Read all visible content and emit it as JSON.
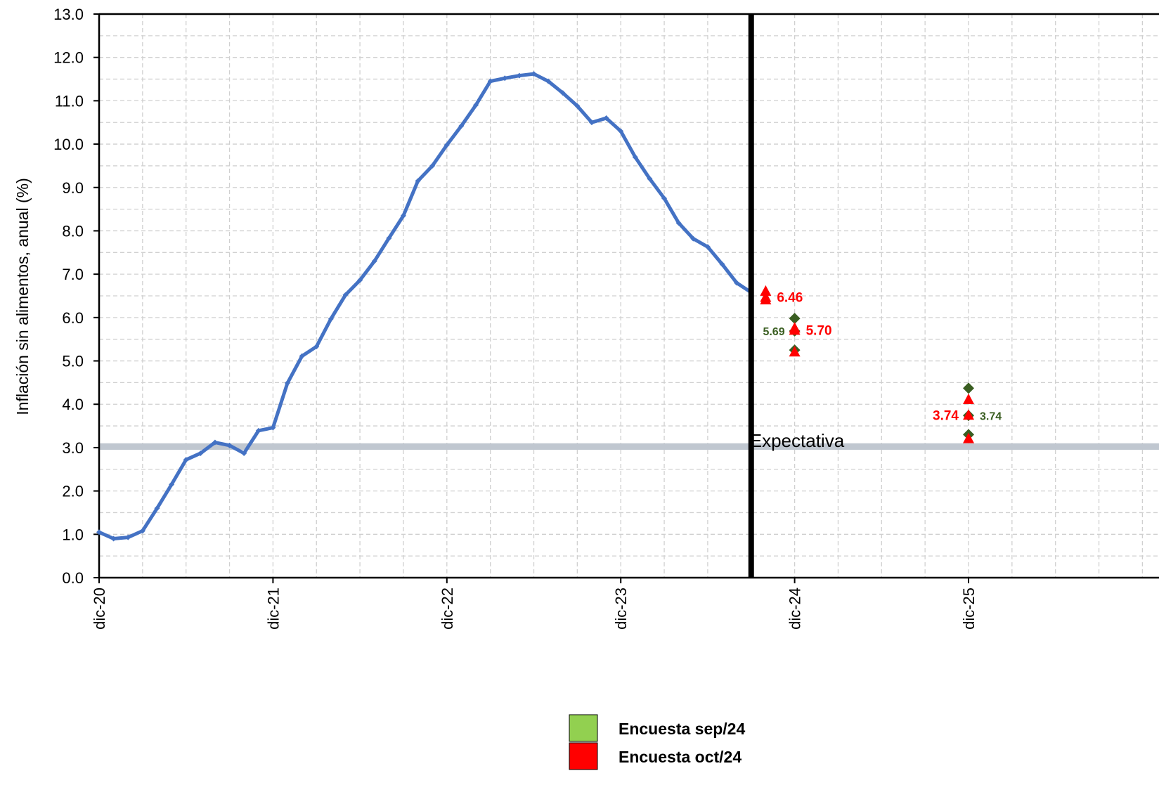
{
  "chart_data": {
    "type": "line",
    "title": "",
    "ylabel": "Inflación  sin alimentos,  anual  (%)",
    "xlabel": "",
    "ylim": [
      0,
      13
    ],
    "yticks": [
      "0.0",
      "1.0",
      "2.0",
      "3.0",
      "4.0",
      "5.0",
      "6.0",
      "7.0",
      "8.0",
      "9.0",
      "10.0",
      "11.0",
      "12.0",
      "13.0"
    ],
    "grid": true,
    "x_months_domain": [
      0,
      72
    ],
    "xticks": [
      {
        "label": "dic-20",
        "m": 0
      },
      {
        "label": "dic-21",
        "m": 12
      },
      {
        "label": "dic-22",
        "m": 24
      },
      {
        "label": "dic-23",
        "m": 36
      },
      {
        "label": "dic-24",
        "m": 48
      },
      {
        "label": "dic-25",
        "m": 60
      }
    ],
    "target_band": {
      "low": 2.95,
      "high": 3.1,
      "color": "#c0c7d0"
    },
    "divider": {
      "m": 45,
      "label": "Expectativa"
    },
    "series": [
      {
        "name": "",
        "color": "#4472c4",
        "x_months": [
          0,
          1,
          2,
          3,
          4,
          5,
          6,
          7,
          8,
          9,
          10,
          11,
          12,
          13,
          14,
          15,
          16,
          17,
          18,
          19,
          20,
          21,
          22,
          23,
          24,
          25,
          26,
          27,
          28,
          29,
          30,
          31,
          32,
          33,
          34,
          35,
          36,
          37,
          38,
          39,
          40,
          41,
          42,
          43,
          44,
          45
        ],
        "values": [
          1.05,
          0.9,
          0.93,
          1.08,
          1.6,
          2.15,
          2.72,
          2.87,
          3.12,
          3.05,
          2.87,
          3.39,
          3.46,
          4.49,
          5.11,
          5.33,
          5.97,
          6.52,
          6.86,
          7.3,
          7.83,
          8.35,
          9.15,
          9.5,
          9.98,
          10.42,
          10.9,
          11.45,
          11.52,
          11.58,
          11.62,
          11.45,
          11.18,
          10.88,
          10.5,
          10.6,
          10.3,
          9.7,
          9.2,
          8.75,
          8.18,
          7.82,
          7.63,
          7.23,
          6.8,
          6.58
        ]
      }
    ],
    "surveys": [
      {
        "name": "Encuesta sep/24",
        "color": "#3a5e21",
        "legend_color": "#92d050",
        "marker": "diamond",
        "points": [
          {
            "m": 48,
            "values": [
              5.98,
              5.69,
              5.25
            ],
            "label": "5.69",
            "label_side": "left"
          },
          {
            "m": 60,
            "values": [
              4.37,
              3.74,
              3.3
            ],
            "label": "3.74",
            "label_side": "right"
          }
        ]
      },
      {
        "name": "Encuesta oct/24",
        "color": "#ff0000",
        "legend_color": "#ff0000",
        "marker": "triangle",
        "points": [
          {
            "m": 46,
            "values": [
              6.6,
              6.46,
              6.4
            ],
            "label": "6.46",
            "label_side": "right"
          },
          {
            "m": 48,
            "values": [
              5.75,
              5.7,
              5.2
            ],
            "label": "5.70",
            "label_side": "right"
          },
          {
            "m": 60,
            "values": [
              4.1,
              3.74,
              3.2
            ],
            "label": "3.74",
            "label_side": "left"
          }
        ]
      }
    ],
    "legend_position": "bottom-center"
  }
}
